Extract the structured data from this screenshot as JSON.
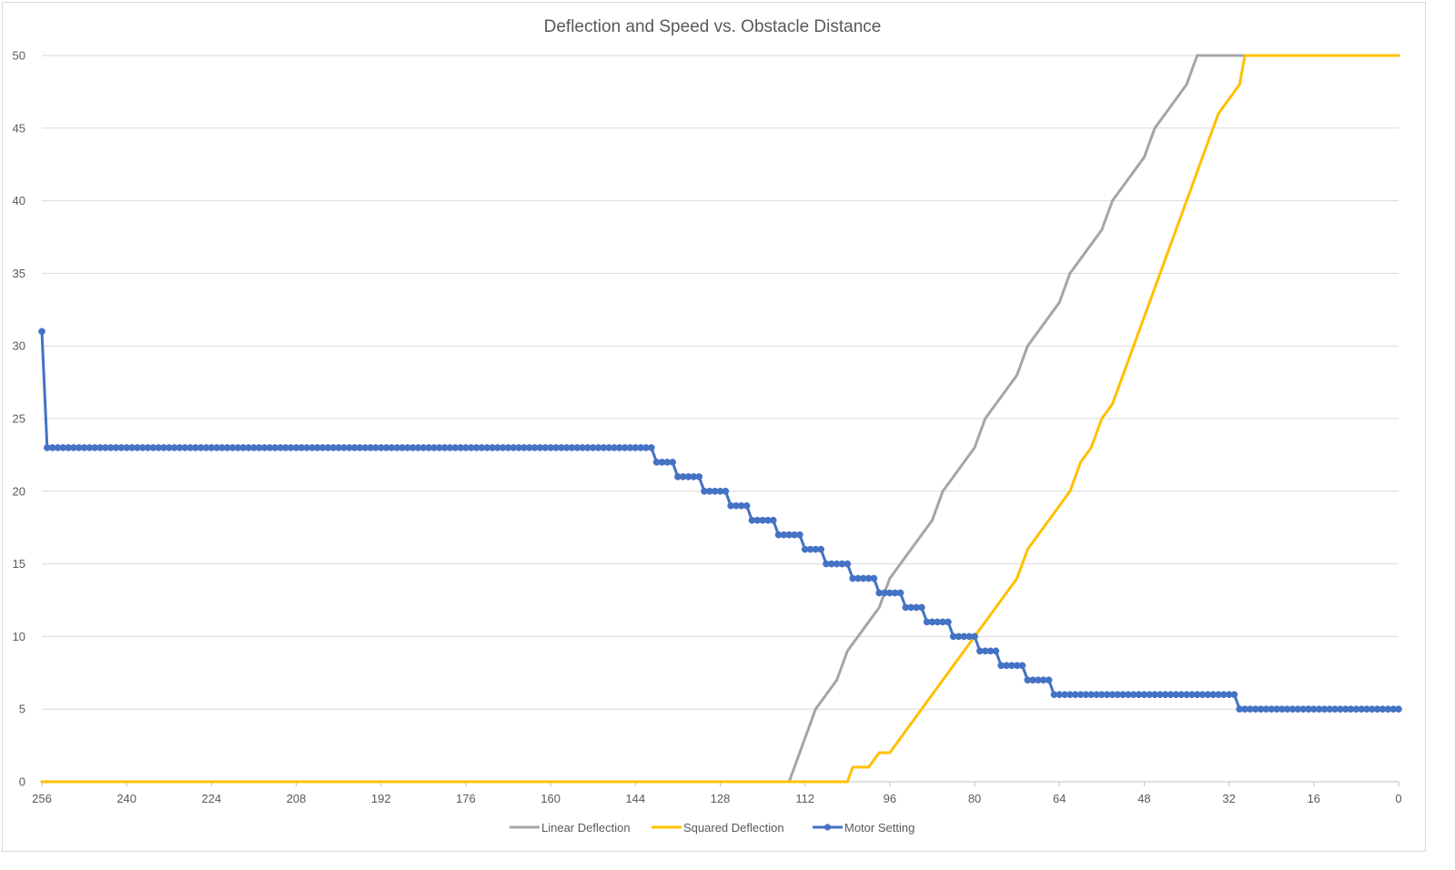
{
  "chart_data": {
    "type": "line",
    "title": "Deflection and Speed vs. Obstacle Distance",
    "xlabel": "",
    "ylabel": "",
    "xlim": [
      256,
      0
    ],
    "x_reversed": true,
    "ylim": [
      0,
      50
    ],
    "x_ticks": [
      256,
      240,
      224,
      208,
      192,
      176,
      160,
      144,
      128,
      112,
      96,
      80,
      64,
      48,
      32,
      16,
      0
    ],
    "y_ticks": [
      0,
      5,
      10,
      15,
      20,
      25,
      30,
      35,
      40,
      45,
      50
    ],
    "grid": "horizontal",
    "legend_position": "bottom",
    "series": [
      {
        "name": "Linear Deflection",
        "color": "#a5a5a5",
        "marker": "none",
        "x": [
          256,
          115,
          114,
          113,
          112,
          110,
          108,
          106,
          104,
          102,
          100,
          98,
          96,
          94,
          92,
          90,
          88,
          86,
          84,
          82,
          80,
          78,
          76,
          74,
          72,
          70,
          68,
          66,
          64,
          62,
          60,
          58,
          56,
          54,
          52,
          50,
          48,
          46,
          44,
          42,
          40,
          38,
          36,
          34,
          32,
          30,
          29,
          0
        ],
        "values": [
          0,
          0,
          1,
          2,
          3,
          5,
          6,
          7,
          9,
          10,
          11,
          12,
          14,
          15,
          16,
          17,
          18,
          20,
          21,
          22,
          23,
          25,
          26,
          27,
          28,
          30,
          31,
          32,
          33,
          35,
          36,
          37,
          38,
          40,
          41,
          42,
          43,
          45,
          46,
          47,
          48,
          50,
          50,
          50,
          50,
          50,
          50,
          50
        ]
      },
      {
        "name": "Squared Deflection",
        "color": "#ffc000",
        "marker": "none",
        "x": [
          256,
          104,
          103,
          102,
          100,
          98,
          96,
          94,
          92,
          90,
          88,
          86,
          84,
          82,
          80,
          78,
          76,
          74,
          72,
          70,
          68,
          66,
          64,
          62,
          60,
          58,
          56,
          54,
          52,
          50,
          48,
          46,
          44,
          42,
          40,
          38,
          36,
          34,
          32,
          30,
          29,
          0
        ],
        "values": [
          0,
          0,
          1,
          1,
          1,
          2,
          2,
          3,
          4,
          5,
          6,
          7,
          8,
          9,
          10,
          11,
          12,
          13,
          14,
          16,
          17,
          18,
          19,
          20,
          22,
          23,
          25,
          26,
          28,
          30,
          32,
          34,
          36,
          38,
          40,
          42,
          44,
          46,
          47,
          48,
          50,
          50
        ]
      },
      {
        "name": "Motor Setting",
        "color": "#4472c4",
        "marker": "circle",
        "steps": [
          {
            "from": 256,
            "to": 256,
            "value": 31
          },
          {
            "from": 255,
            "to": 141,
            "value": 23
          },
          {
            "from": 140,
            "to": 137,
            "value": 22
          },
          {
            "from": 136,
            "to": 132,
            "value": 21
          },
          {
            "from": 131,
            "to": 127,
            "value": 20
          },
          {
            "from": 126,
            "to": 123,
            "value": 19
          },
          {
            "from": 122,
            "to": 118,
            "value": 18
          },
          {
            "from": 117,
            "to": 113,
            "value": 17
          },
          {
            "from": 112,
            "to": 109,
            "value": 16
          },
          {
            "from": 108,
            "to": 104,
            "value": 15
          },
          {
            "from": 103,
            "to": 99,
            "value": 14
          },
          {
            "from": 98,
            "to": 94,
            "value": 13
          },
          {
            "from": 93,
            "to": 90,
            "value": 12
          },
          {
            "from": 89,
            "to": 85,
            "value": 11
          },
          {
            "from": 84,
            "to": 80,
            "value": 10
          },
          {
            "from": 79,
            "to": 76,
            "value": 9
          },
          {
            "from": 75,
            "to": 71,
            "value": 8
          },
          {
            "from": 70,
            "to": 66,
            "value": 7
          },
          {
            "from": 65,
            "to": 31,
            "value": 6
          },
          {
            "from": 30,
            "to": 0,
            "value": 5
          }
        ]
      }
    ]
  }
}
